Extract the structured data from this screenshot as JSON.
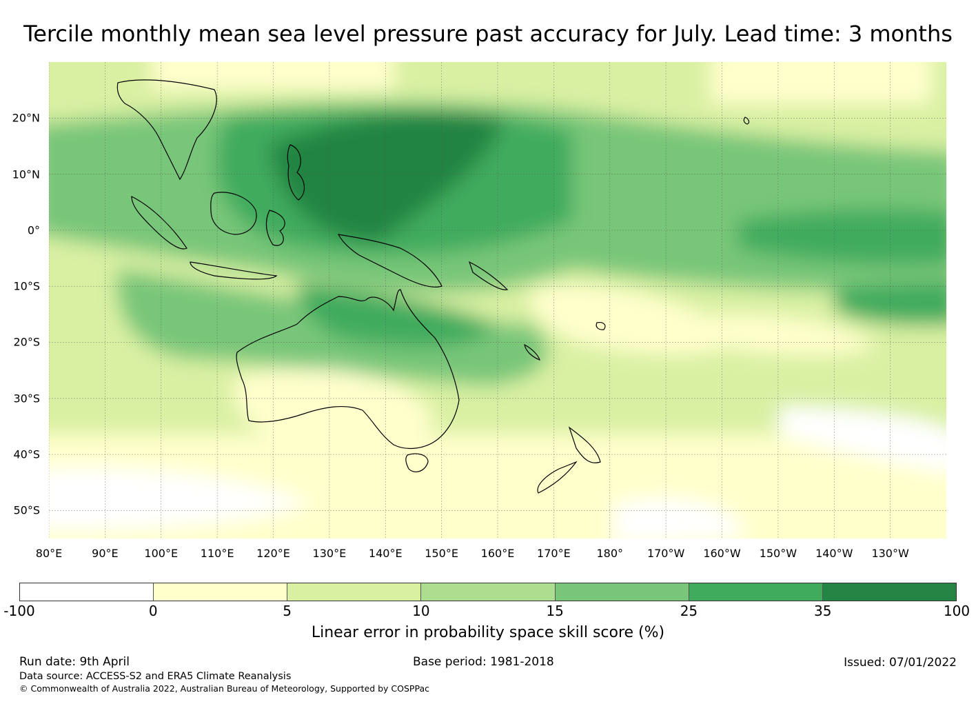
{
  "title": "Tercile monthly mean sea level pressure past accuracy for July. Lead time: 3 months",
  "map": {
    "extent": {
      "lon_min": 80,
      "lon_max": 240,
      "lat_min": -55,
      "lat_max": 30
    },
    "latitude_labels": [
      {
        "lat": 20,
        "label": "20°N"
      },
      {
        "lat": 10,
        "label": "10°N"
      },
      {
        "lat": 0,
        "label": "0°"
      },
      {
        "lat": -10,
        "label": "10°S"
      },
      {
        "lat": -20,
        "label": "20°S"
      },
      {
        "lat": -30,
        "label": "30°S"
      },
      {
        "lat": -40,
        "label": "40°S"
      },
      {
        "lat": -50,
        "label": "50°S"
      }
    ],
    "longitude_labels": [
      {
        "lon": 80,
        "label": "80°E"
      },
      {
        "lon": 90,
        "label": "90°E"
      },
      {
        "lon": 100,
        "label": "100°E"
      },
      {
        "lon": 110,
        "label": "110°E"
      },
      {
        "lon": 120,
        "label": "120°E"
      },
      {
        "lon": 130,
        "label": "130°E"
      },
      {
        "lon": 140,
        "label": "140°E"
      },
      {
        "lon": 150,
        "label": "150°E"
      },
      {
        "lon": 160,
        "label": "160°E"
      },
      {
        "lon": 170,
        "label": "170°E"
      },
      {
        "lon": 180,
        "label": "180°"
      },
      {
        "lon": 190,
        "label": "170°W"
      },
      {
        "lon": 200,
        "label": "160°W"
      },
      {
        "lon": 210,
        "label": "150°W"
      },
      {
        "lon": 220,
        "label": "140°W"
      },
      {
        "lon": 230,
        "label": "130°W"
      }
    ]
  },
  "colorbar": {
    "label": "Linear error in probability space skill score (%)",
    "boundaries": [
      "-100",
      "0",
      "5",
      "10",
      "15",
      "25",
      "35",
      "100"
    ],
    "colors": [
      "#ffffff",
      "#ffffcc",
      "#d9f0a3",
      "#addd8e",
      "#78c679",
      "#41ab5d",
      "#238443"
    ]
  },
  "footer": {
    "run_date": "Run date: 9th April",
    "base_period": "Base period: 1981-2018",
    "issued": "Issued: 07/01/2022",
    "data_source": "Data source: ACCESS-S2 and ERA5 Climate Reanalysis",
    "copyright": "© Commonwealth of Australia 2022, Australian Bureau of Meteorology, Supported by COSPPac"
  }
}
